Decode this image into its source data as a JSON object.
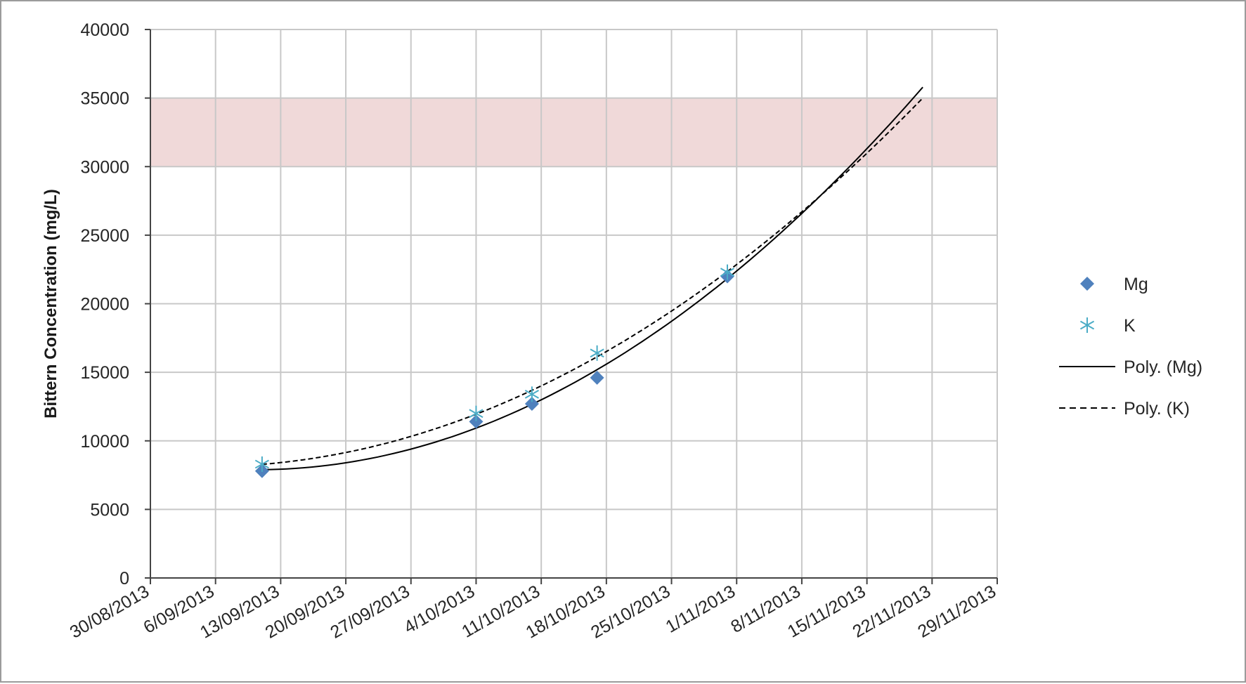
{
  "chart_data": {
    "type": "scatter",
    "ylabel": "Bittern Concentration (mg/L)",
    "xlabel": "",
    "ylim": [
      0,
      40000
    ],
    "yticks": [
      0,
      5000,
      10000,
      15000,
      20000,
      25000,
      30000,
      35000,
      40000
    ],
    "xlim": [
      "30/08/2013",
      "29/11/2013"
    ],
    "xticks": [
      "30/08/2013",
      "6/09/2013",
      "13/09/2013",
      "20/09/2013",
      "27/09/2013",
      "4/10/2013",
      "11/10/2013",
      "18/10/2013",
      "25/10/2013",
      "1/11/2013",
      "8/11/2013",
      "15/11/2013",
      "22/11/2013",
      "29/11/2013"
    ],
    "grid": true,
    "legend_position": "right",
    "shaded_band": {
      "y_from": 30000,
      "y_to": 35000,
      "color": "#f0d9d9"
    },
    "series": [
      {
        "name": "Mg",
        "marker": "diamond",
        "color": "#4f81bd",
        "points": [
          {
            "x": "11/09/2013",
            "y": 7800
          },
          {
            "x": "4/10/2013",
            "y": 11400
          },
          {
            "x": "10/10/2013",
            "y": 12700
          },
          {
            "x": "17/10/2013",
            "y": 14600
          },
          {
            "x": "31/10/2013",
            "y": 22000
          }
        ]
      },
      {
        "name": "K",
        "marker": "star",
        "color": "#4bacc6",
        "points": [
          {
            "x": "11/09/2013",
            "y": 8300
          },
          {
            "x": "4/10/2013",
            "y": 12000
          },
          {
            "x": "10/10/2013",
            "y": 13400
          },
          {
            "x": "17/10/2013",
            "y": 16400
          },
          {
            "x": "31/10/2013",
            "y": 22300
          }
        ]
      }
    ],
    "trendlines": [
      {
        "name": "Poly. (Mg)",
        "of": "Mg",
        "style": "solid",
        "color": "#000000",
        "x_end": "21/11/2013",
        "y_end": 35800
      },
      {
        "name": "Poly. (K)",
        "of": "K",
        "style": "dashed",
        "color": "#000000",
        "x_end": "21/11/2013",
        "y_end": 35000
      }
    ]
  }
}
